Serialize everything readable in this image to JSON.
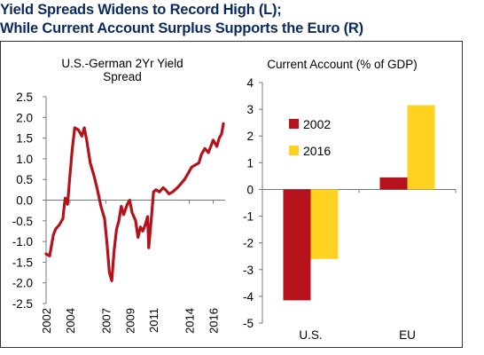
{
  "header": {
    "title_line1": "Yield Spreads Widens to Record High (L);",
    "title_line2": "While Current Account Surplus Supports the Euro (R)"
  },
  "chart_data": [
    {
      "type": "line",
      "title": "U.S.-German 2Yr Yield Spread",
      "title_lines": [
        "U.S.-German 2Yr Yield",
        "Spread"
      ],
      "xlabel": "",
      "ylabel": "",
      "ylim": [
        -2.5,
        2.5
      ],
      "yticks": [
        "2.5",
        "2.0",
        "1.5",
        "1.0",
        "0.5",
        "0.0",
        "-0.5",
        "-1.0",
        "-1.5",
        "-2.0",
        "-2.5"
      ],
      "xlim": [
        2002,
        2017
      ],
      "xticks": [
        "2002",
        "2004",
        "2007",
        "2009",
        "2011",
        "2014",
        "2016"
      ],
      "grid": false,
      "line_color": "#b5121b",
      "series": [
        {
          "x": [
            2002.0,
            2002.3,
            2002.6,
            2002.8,
            2003.1,
            2003.4,
            2003.6,
            2003.8,
            2004.0,
            2004.2,
            2004.4,
            2004.7,
            2005.0,
            2005.2,
            2005.4,
            2005.7,
            2006.0,
            2006.3,
            2006.6,
            2006.9,
            2007.1,
            2007.3,
            2007.5,
            2007.7,
            2007.9,
            2008.1,
            2008.3,
            2008.5,
            2008.8,
            2009.0,
            2009.2,
            2009.5,
            2009.7,
            2009.9,
            2010.1,
            2010.3,
            2010.5,
            2010.6,
            2010.8,
            2011.0,
            2011.2,
            2011.5,
            2011.8,
            2012.0,
            2012.3,
            2012.6,
            2013.0,
            2013.3,
            2013.6,
            2013.9,
            2014.2,
            2014.5,
            2014.8,
            2015.0,
            2015.3,
            2015.6,
            2015.8,
            2016.0,
            2016.3,
            2016.5,
            2016.7,
            2016.85
          ],
          "values": [
            -1.3,
            -1.35,
            -0.85,
            -0.7,
            -0.6,
            -0.45,
            0.05,
            -0.1,
            0.6,
            1.25,
            1.75,
            1.7,
            1.55,
            1.75,
            1.45,
            0.9,
            0.6,
            0.25,
            -0.15,
            -0.45,
            -1.05,
            -1.75,
            -1.95,
            -1.2,
            -0.7,
            -0.5,
            -0.15,
            -0.35,
            -0.1,
            0.0,
            -0.3,
            -0.5,
            -0.9,
            -0.65,
            -0.75,
            -0.6,
            -0.4,
            -1.15,
            -0.5,
            0.2,
            0.25,
            0.2,
            0.3,
            0.25,
            0.15,
            0.2,
            0.3,
            0.4,
            0.5,
            0.65,
            0.8,
            0.85,
            0.9,
            1.1,
            1.25,
            1.15,
            1.3,
            1.45,
            1.3,
            1.5,
            1.6,
            1.85
          ]
        }
      ]
    },
    {
      "type": "bar",
      "title": "Current Account (% of GDP)",
      "categories": [
        "U.S.",
        "EU"
      ],
      "ylim": [
        -5,
        4
      ],
      "yticks": [
        "4",
        "3",
        "2",
        "1",
        "0",
        "-1",
        "-2",
        "-3",
        "-4",
        "-5"
      ],
      "xlabel": "",
      "ylabel": "",
      "grid": false,
      "legend_position": "left",
      "series": [
        {
          "name": "2002",
          "color": "#b5121b",
          "values": [
            -4.15,
            0.45
          ]
        },
        {
          "name": "2016",
          "color": "#ffd21f",
          "values": [
            -2.6,
            3.15
          ]
        }
      ]
    }
  ]
}
